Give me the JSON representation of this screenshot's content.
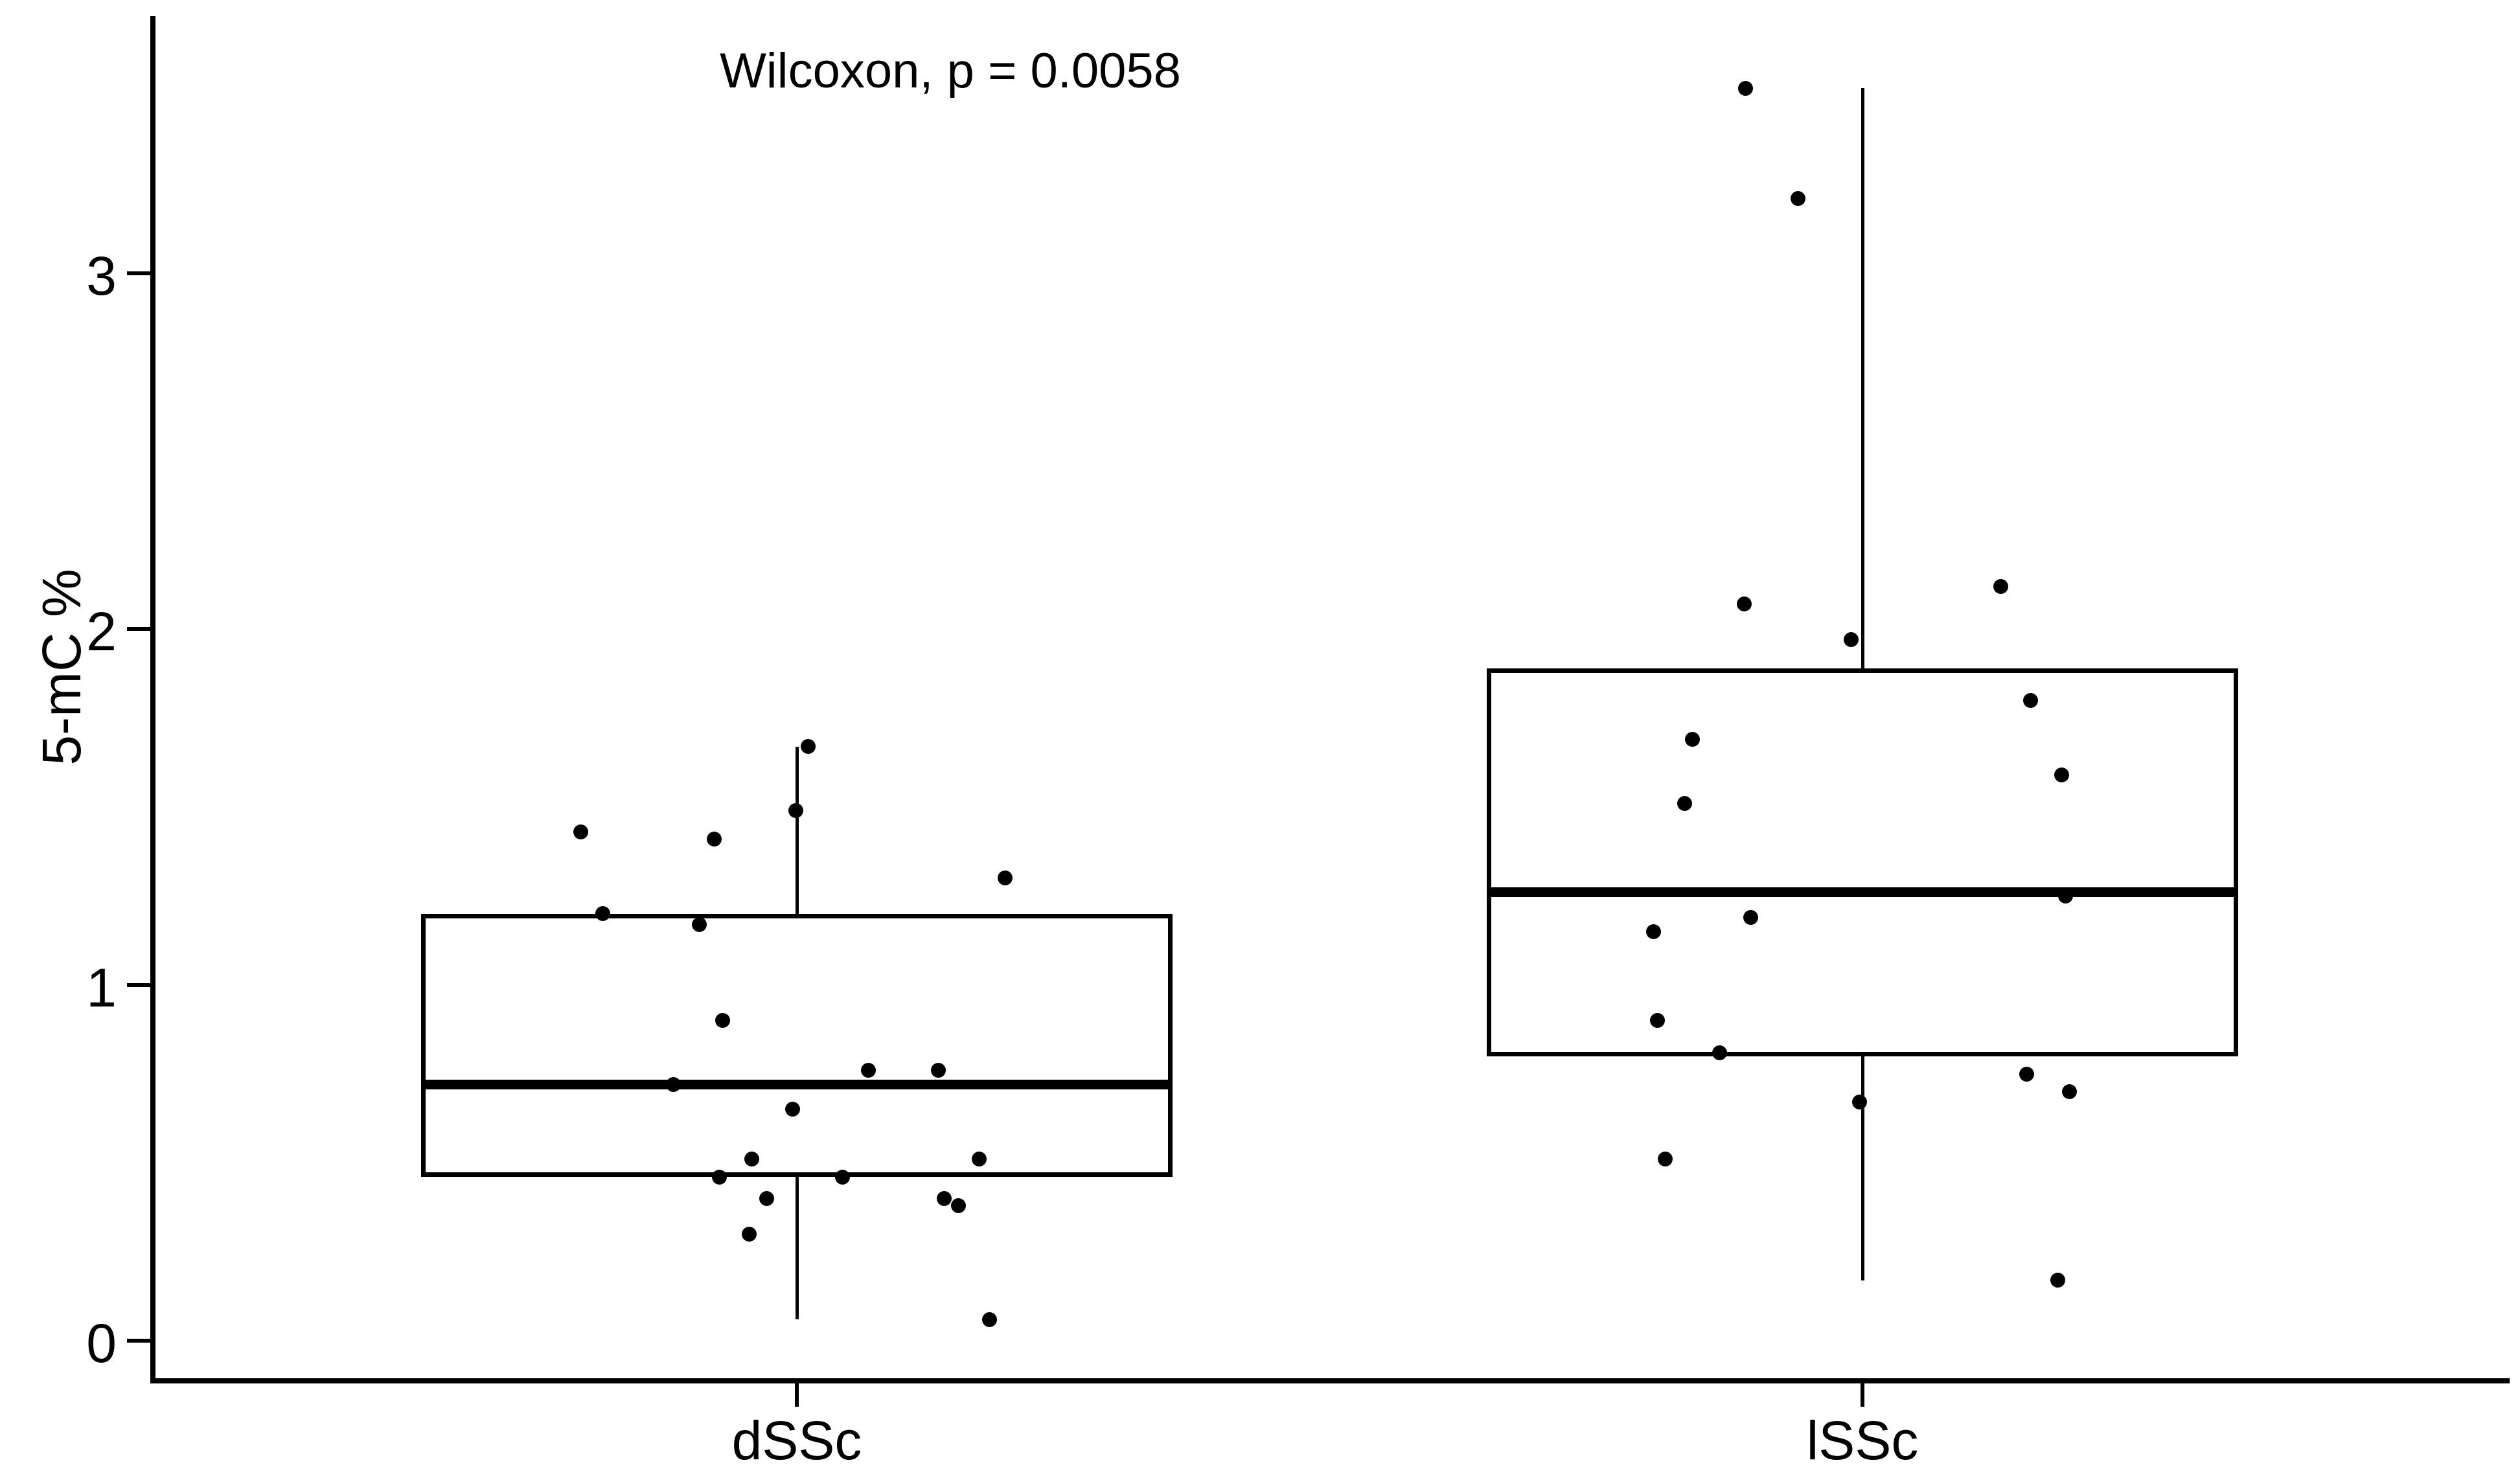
{
  "chart_data": {
    "type": "boxplot",
    "subtype": "boxplot-with-jittered-points",
    "annotation": "Wilcoxon, p = 0.0058",
    "ylabel": "5-mC %",
    "xlabel": "",
    "ylim": [
      0,
      3.72
    ],
    "grid": false,
    "legend_position": "none",
    "colors": {
      "stroke": "#000000",
      "box_fill": "#ffffff",
      "point": "#000000",
      "background": "#ffffff",
      "text": "#000000"
    },
    "yticks": [
      {
        "label": "0",
        "value": 0
      },
      {
        "label": "1",
        "value": 1
      },
      {
        "label": "2",
        "value": 2
      },
      {
        "label": "3",
        "value": 3
      }
    ],
    "groups": [
      {
        "label": "dSSc",
        "box": {
          "q1": 0.46,
          "median": 0.72,
          "q3": 1.2,
          "whisker_low": 0.06,
          "whisker_high": 1.67
        },
        "points": [
          {
            "dx": 17,
            "v": 1.67
          },
          {
            "dx": -2,
            "v": 1.49
          },
          {
            "dx": -334,
            "v": 1.43
          },
          {
            "dx": -128,
            "v": 1.41
          },
          {
            "dx": 321,
            "v": 1.3
          },
          {
            "dx": -300,
            "v": 1.2
          },
          {
            "dx": -151,
            "v": 1.17
          },
          {
            "dx": -115,
            "v": 0.9
          },
          {
            "dx": 110,
            "v": 0.76
          },
          {
            "dx": 218,
            "v": 0.76
          },
          {
            "dx": -191,
            "v": 0.72
          },
          {
            "dx": -7,
            "v": 0.65
          },
          {
            "dx": -70,
            "v": 0.51
          },
          {
            "dx": 281,
            "v": 0.51
          },
          {
            "dx": -120,
            "v": 0.46
          },
          {
            "dx": 70,
            "v": 0.46
          },
          {
            "dx": -47,
            "v": 0.4
          },
          {
            "dx": 227,
            "v": 0.4
          },
          {
            "dx": 249,
            "v": 0.38
          },
          {
            "dx": -74,
            "v": 0.3
          },
          {
            "dx": 297,
            "v": 0.06
          }
        ]
      },
      {
        "label": "lSSc",
        "box": {
          "q1": 0.8,
          "median": 1.26,
          "q3": 1.89,
          "whisker_low": 0.17,
          "whisker_high": 3.52
        },
        "points": [
          {
            "dx": -181,
            "v": 3.52
          },
          {
            "dx": -100,
            "v": 3.21
          },
          {
            "dx": 213,
            "v": 2.12
          },
          {
            "dx": -183,
            "v": 2.07
          },
          {
            "dx": -18,
            "v": 1.97
          },
          {
            "dx": 259,
            "v": 1.8
          },
          {
            "dx": -263,
            "v": 1.69
          },
          {
            "dx": 307,
            "v": 1.59
          },
          {
            "dx": -275,
            "v": 1.51
          },
          {
            "dx": 313,
            "v": 1.25
          },
          {
            "dx": -173,
            "v": 1.19
          },
          {
            "dx": -323,
            "v": 1.15
          },
          {
            "dx": -317,
            "v": 0.9
          },
          {
            "dx": -221,
            "v": 0.81
          },
          {
            "dx": 253,
            "v": 0.75
          },
          {
            "dx": 319,
            "v": 0.7
          },
          {
            "dx": -5,
            "v": 0.67
          },
          {
            "dx": -305,
            "v": 0.51
          },
          {
            "dx": 301,
            "v": 0.17
          }
        ]
      }
    ]
  }
}
